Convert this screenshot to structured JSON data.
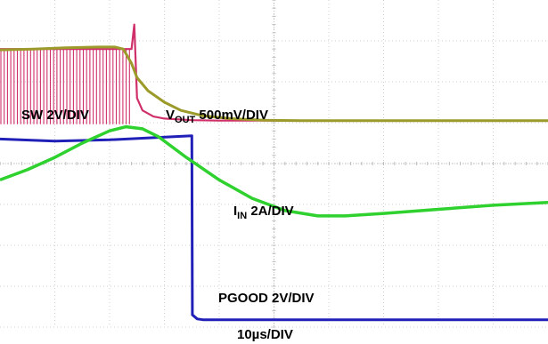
{
  "chart_data": {
    "type": "line",
    "title": "",
    "xlabel": "10µs/DIV",
    "grid": true,
    "grid_divisions": {
      "x": 10,
      "y": 8
    },
    "xlim": [
      0,
      100
    ],
    "series": [
      {
        "key": "sw",
        "name": "SW 2V/DIV",
        "color": "#d0306a",
        "style": "switching",
        "switch_until_us": 24,
        "high_level_div": 6.8,
        "low_level_div": 5.05,
        "x": [
          0,
          24,
          24.5,
          25,
          26,
          28,
          30,
          35,
          40,
          100
        ],
        "y": [
          6.8,
          6.8,
          7.4,
          5.6,
          5.3,
          5.15,
          5.1,
          5.06,
          5.05,
          5.05
        ]
      },
      {
        "key": "vout",
        "name": "VOUT 500mV/DIV",
        "color": "#9b9a2a",
        "style": "line",
        "x": [
          0,
          6,
          12,
          18,
          21,
          22.5,
          24,
          25,
          27,
          30,
          33,
          37,
          42,
          48,
          55,
          70,
          100
        ],
        "y": [
          6.78,
          6.8,
          6.83,
          6.85,
          6.85,
          6.8,
          6.45,
          6.1,
          5.78,
          5.5,
          5.3,
          5.17,
          5.1,
          5.06,
          5.05,
          5.05,
          5.05
        ]
      },
      {
        "key": "iin",
        "name": "IIN 2A/DIV",
        "color": "#2ed12e",
        "style": "line",
        "x": [
          0,
          5,
          10,
          15,
          20,
          23,
          26,
          29,
          34,
          40,
          46,
          52,
          58,
          63,
          70,
          80,
          90,
          100
        ],
        "y": [
          3.6,
          3.85,
          4.15,
          4.5,
          4.8,
          4.9,
          4.85,
          4.65,
          4.15,
          3.6,
          3.15,
          2.85,
          2.72,
          2.72,
          2.78,
          2.88,
          2.98,
          3.05
        ]
      },
      {
        "key": "pgood",
        "name": "PGOOD 2V/DIV",
        "color": "#2020b8",
        "style": "line",
        "x": [
          0,
          10,
          20,
          35,
          35.1,
          36,
          37,
          60,
          100
        ],
        "y": [
          4.6,
          4.55,
          4.58,
          4.68,
          0.3,
          0.2,
          0.18,
          0.18,
          0.18
        ]
      }
    ]
  },
  "labels": {
    "sw": "SW 2V/DIV",
    "vout_main": "V",
    "vout_sub": "OUT",
    "vout_rest": " 500mV/DIV",
    "iin_main": "I",
    "iin_sub": "IN",
    "iin_rest": " 2A/DIV",
    "pgood": "PGOOD 2V/DIV",
    "timebase": "10µs/DIV"
  }
}
